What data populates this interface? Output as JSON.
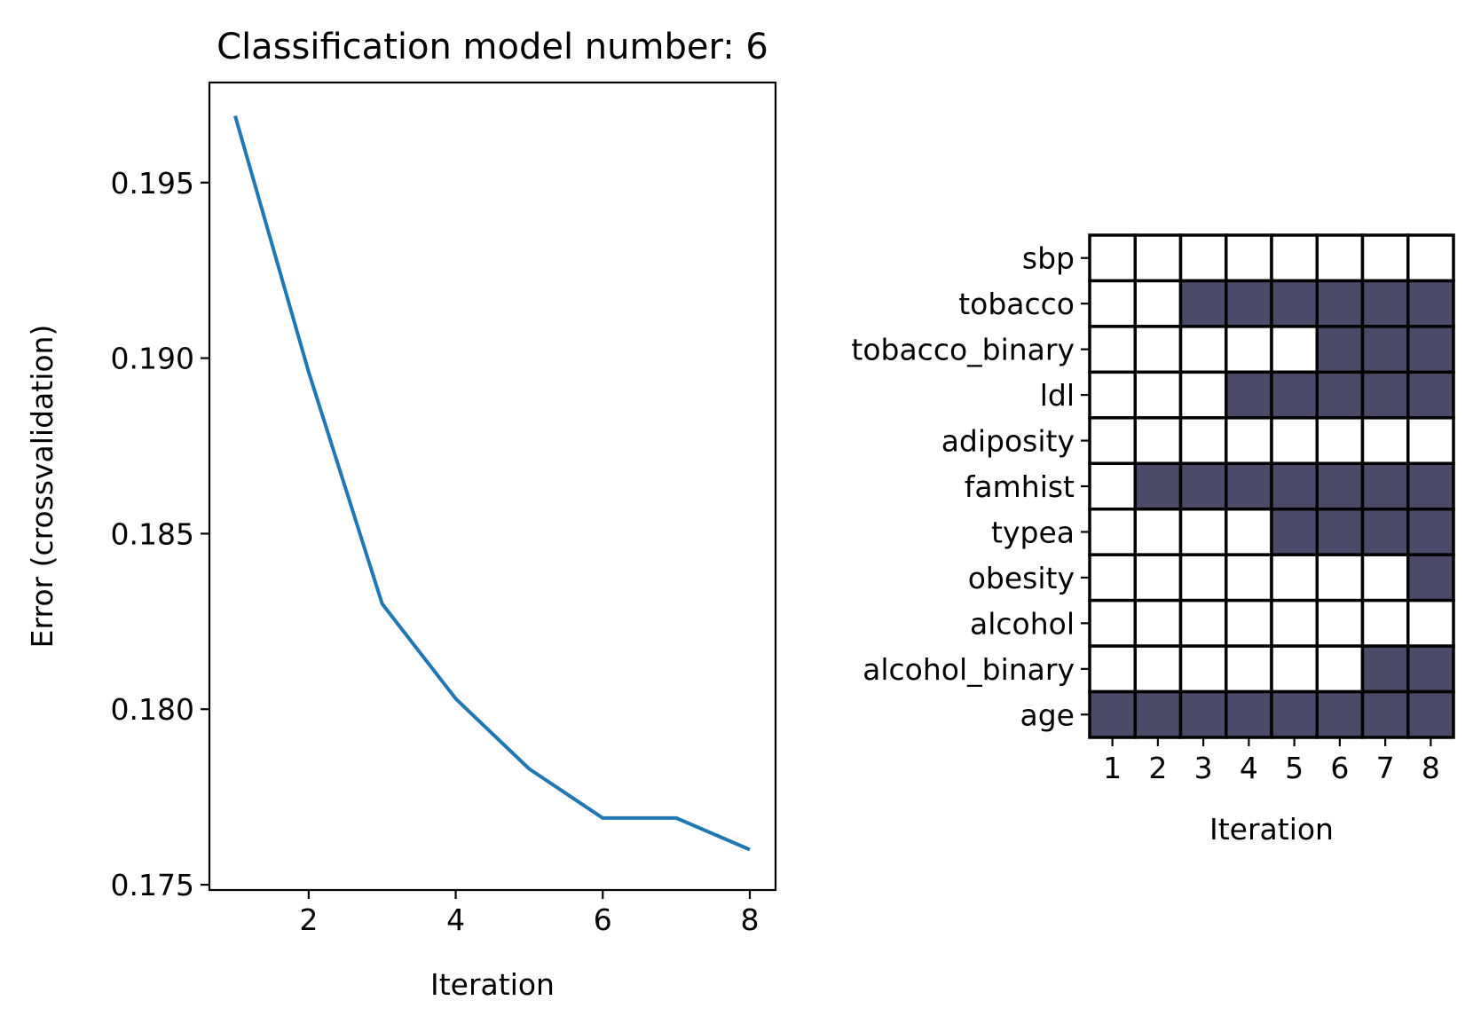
{
  "colors": {
    "line": "#1f77b4",
    "selected": "#4b4a68",
    "unselected": "#ffffff",
    "axes": "#000000"
  },
  "chart_data": [
    {
      "type": "line",
      "title": "Classification model number: 6",
      "xlabel": "Iteration",
      "ylabel": "Error (crossvalidation)",
      "x": [
        1,
        2,
        3,
        4,
        5,
        6,
        7,
        8
      ],
      "series": [
        {
          "values": [
            0.1969,
            0.1896,
            0.183,
            0.1803,
            0.1783,
            0.1769,
            0.1769,
            0.176
          ]
        }
      ],
      "xticks": [
        2,
        4,
        6,
        8
      ],
      "xtick_labels": [
        "2",
        "4",
        "6",
        "8"
      ],
      "yticks": [
        0.175,
        0.18,
        0.185,
        0.19,
        0.195
      ],
      "ytick_labels": [
        "0.175",
        "0.180",
        "0.185",
        "0.190",
        "0.195"
      ],
      "xlim": [
        0.65,
        8.35
      ],
      "ylim": [
        0.17485,
        0.19785
      ],
      "grid": false,
      "legend": false
    },
    {
      "type": "heatmap",
      "title": "",
      "xlabel": "Iteration",
      "ylabel": "",
      "x": [
        "1",
        "2",
        "3",
        "4",
        "5",
        "6",
        "7",
        "8"
      ],
      "y": [
        "sbp",
        "tobacco",
        "tobacco_binary",
        "ldl",
        "adiposity",
        "famhist",
        "typea",
        "obesity",
        "alcohol",
        "alcohol_binary",
        "age"
      ],
      "values": [
        [
          0,
          0,
          0,
          0,
          0,
          0,
          0,
          0
        ],
        [
          0,
          0,
          1,
          1,
          1,
          1,
          1,
          1
        ],
        [
          0,
          0,
          0,
          0,
          0,
          1,
          1,
          1
        ],
        [
          0,
          0,
          0,
          1,
          1,
          1,
          1,
          1
        ],
        [
          0,
          0,
          0,
          0,
          0,
          0,
          0,
          0
        ],
        [
          0,
          1,
          1,
          1,
          1,
          1,
          1,
          1
        ],
        [
          0,
          0,
          0,
          0,
          1,
          1,
          1,
          1
        ],
        [
          0,
          0,
          0,
          0,
          0,
          0,
          0,
          1
        ],
        [
          0,
          0,
          0,
          0,
          0,
          0,
          0,
          0
        ],
        [
          0,
          0,
          0,
          0,
          0,
          0,
          1,
          1
        ],
        [
          1,
          1,
          1,
          1,
          1,
          1,
          1,
          1
        ]
      ],
      "grid": true,
      "legend": false
    }
  ]
}
